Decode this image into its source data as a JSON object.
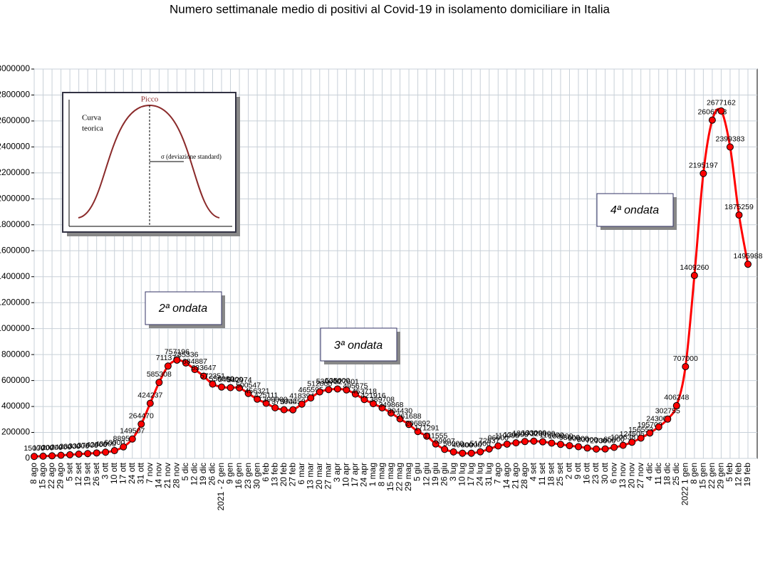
{
  "chart_data": {
    "type": "line",
    "title": "Numero settimanale medio di positivi al Covid-19  in isolamento domiciliare in Italia",
    "categories": [
      "8 ago",
      "15 ago",
      "22 ago",
      "29 ago",
      "5 set",
      "12 set",
      "19 set",
      "26 set",
      "3 ott",
      "10 ott",
      "17 ott",
      "24 ott",
      "31 ott",
      "7 nov",
      "14 nov",
      "21 nov",
      "28 nov",
      "5 dic",
      "12 dic",
      "19 dic",
      "26 dic",
      "2021 - 2 gen",
      "9 gen",
      "16 gen",
      "23 gen",
      "30 gen",
      "6 feb",
      "13 feb",
      "20 feb",
      "27 feb",
      "6 mar",
      "13 mar",
      "20 mar",
      "27 mar",
      "3 apr",
      "10 apr",
      "17 apr",
      "24 apr",
      "1 mag",
      "8 mag",
      "15 mag",
      "22 mag",
      "29 mag",
      "5 giu",
      "12 giu",
      "19 giu",
      "26 giu",
      "3 lug",
      "10 lug",
      "17 lug",
      "24 lug",
      "31 lug",
      "7 ago",
      "14 ago",
      "21 ago",
      "28 ago",
      "4 set",
      "11 set",
      "18 set",
      "25 set",
      "2 ott",
      "9 ott",
      "16 ott",
      "23 ott",
      "30 ott",
      "6 nov",
      "13 nov",
      "20 nov",
      "27 nov",
      "4 dic",
      "11 dic",
      "18 dic",
      "25 dic",
      "2022 1 gen",
      "8 gen",
      "15 gen",
      "22 gen",
      "29 gen",
      "5 feb",
      "12 feb",
      "19 feb"
    ],
    "values": [
      15000,
      17000,
      20000,
      24000,
      28000,
      33000,
      37000,
      42000,
      48000,
      60000,
      88950,
      149507,
      264470,
      424237,
      585308,
      711370,
      757196,
      735336,
      684887,
      633647,
      572351,
      550000,
      545000,
      542974,
      500547,
      456321,
      425111,
      390000,
      375000,
      374452,
      418394,
      465595,
      512000,
      530000,
      535000,
      527601,
      495675,
      453718,
      421916,
      389708,
      349868,
      304430,
      261688,
      206892,
      171291,
      111555,
      69907,
      50000,
      40000,
      40000,
      51000,
      72537,
      96000,
      110000,
      120000,
      130000,
      133000,
      128000,
      118000,
      108000,
      98000,
      90000,
      80000,
      72000,
      73000,
      85000,
      100638,
      124505,
      156553,
      195700,
      243000,
      302755,
      406248,
      707000,
      1409260,
      2195197,
      2606733,
      2677162,
      2399383,
      1875259,
      1495988
    ],
    "color": "#ff0000",
    "ylim": [
      0,
      3000000
    ],
    "yticks": [
      0,
      200000,
      400000,
      600000,
      800000,
      1000000,
      1200000,
      1400000,
      1600000,
      1800000,
      2000000,
      2200000,
      2400000,
      2600000,
      2800000,
      3000000
    ],
    "grid": true,
    "annotations": [
      "2ª ondata",
      "3ª ondata",
      "4ª ondata"
    ],
    "inset": {
      "peak": "Picco",
      "curve": [
        "Curva",
        "teorica"
      ],
      "sigma": "σ  (deviazione standard)"
    }
  }
}
